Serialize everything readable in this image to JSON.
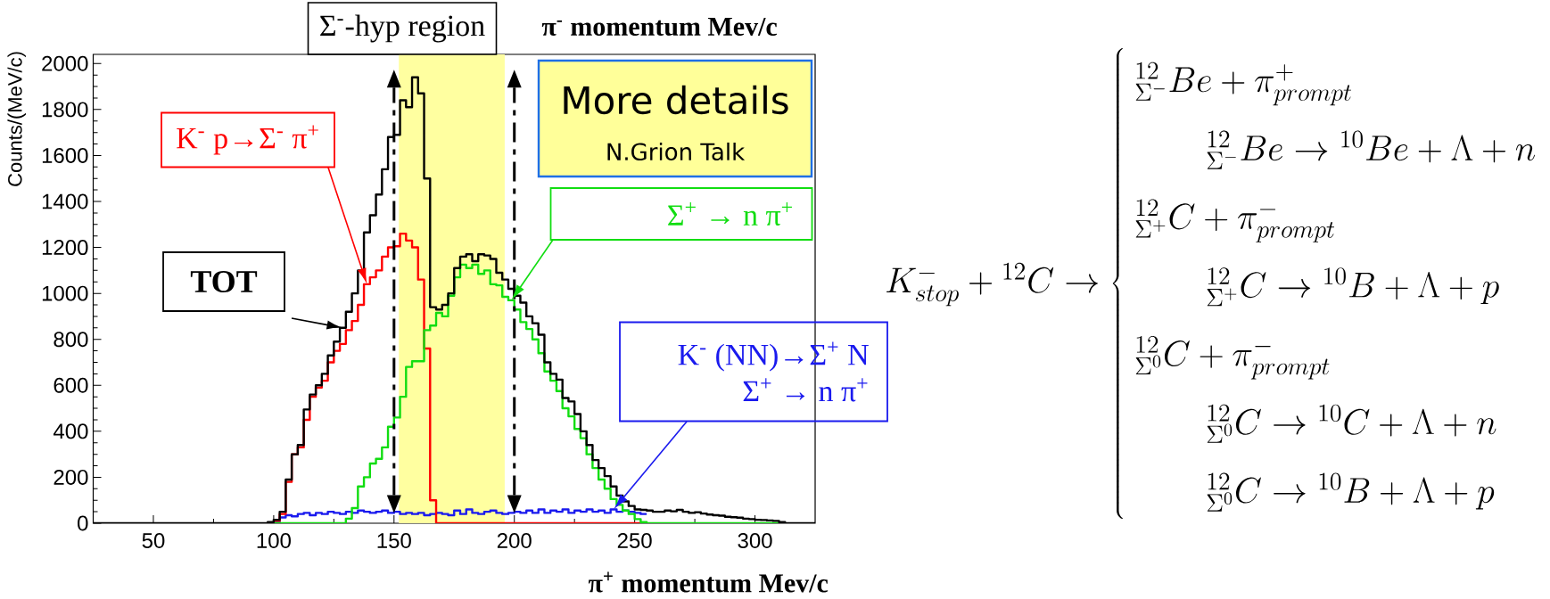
{
  "chart_data": {
    "type": "histogram",
    "xlabel": "π$^{+}$ momentum Mev/c",
    "ylabel": "Counts/(MeV/c)",
    "annotations": [
      "Σ$^{-}$-hyp region",
      "π$^{-}$ momentum Mev/c",
      "More details",
      "N.Grion Talk",
      "K^{-}_{stop}+{}^{12}C\\rightarrow\\left\\{\\begin{array}{l}{}^{12}_{\\Sigma^{-}}Be+\\pi^{+}_{prompt}\\\\\\qquad{}^{12}_{\\Sigma^{-}}Be\\rightarrow{}^{10}Be+\\Lambda+n\\\\{}^{12}_{\\Sigma^{+}}C+\\pi^{-}_{prompt}\\\\\\qquad{}^{12}_{\\Sigma^{+}}C\\rightarrow{}^{10}B+\\Lambda+p\\\\{}^{12}_{\\Sigma^{0}}C+\\pi^{-}_{prompt}\\\\\\qquad{}^{12}_{\\Sigma^{0}}C\\rightarrow{}^{10}C+\\Lambda+n\\\\\\qquad{}^{12}_{\\Sigma^{0}}C\\rightarrow{}^{10}B+\\Lambda+p\\end{array}\\right."
    ],
    "bins": [
      25,
      27.5,
      30,
      32.5,
      35,
      37.5,
      40,
      42.5,
      45,
      47.5,
      50,
      52.5,
      55,
      57.5,
      60,
      62.5,
      65,
      67.5,
      70,
      72.5,
      75,
      77.5,
      80,
      82.5,
      85,
      87.5,
      90,
      92.5,
      95,
      97.5,
      100,
      102.5,
      105,
      107.5,
      110,
      112.5,
      115,
      117.5,
      120,
      122.5,
      125,
      127.5,
      130,
      132.5,
      135,
      137.5,
      140,
      142.5,
      145,
      147.5,
      150,
      152.5,
      155,
      157.5,
      160,
      162.5,
      165,
      167.5,
      170,
      172.5,
      175,
      177.5,
      180,
      182.5,
      185,
      187.5,
      190,
      192.5,
      195,
      197.5,
      200,
      202.5,
      205,
      207.5,
      210,
      212.5,
      215,
      217.5,
      220,
      222.5,
      225,
      227.5,
      230,
      232.5,
      235,
      237.5,
      240,
      242.5,
      245,
      247.5,
      250,
      252.5,
      255,
      257.5,
      260,
      262.5,
      265,
      267.5,
      270,
      272.5,
      275,
      277.5,
      280,
      282.5,
      285,
      287.5,
      290,
      292.5,
      295,
      297.5,
      300,
      302.5,
      305,
      307.5,
      310,
      312.5,
      315,
      317.5,
      320,
      322.5,
      325
    ],
    "series": [
      {
        "name": "K$^{-}$ (NN)→Σ$^{+}$ N Σ$^{+}$ → n π$^{+}$",
        "color": "#1a1aee",
        "bins": [
          100,
          102.5,
          105,
          107.5,
          110,
          112.5,
          115,
          117.5,
          120,
          122.5,
          125,
          127.5,
          130,
          132.5,
          135,
          137.5,
          140,
          142.5,
          145,
          147.5,
          150,
          152.5,
          155,
          157.5,
          160,
          162.5,
          165,
          167.5,
          170,
          172.5,
          175,
          177.5,
          180,
          182.5,
          185,
          187.5,
          190,
          192.5,
          195,
          197.5,
          200,
          202.5,
          205,
          207.5,
          210,
          212.5,
          215,
          217.5,
          220,
          222.5,
          225,
          227.5,
          230,
          232.5,
          235,
          237.5,
          240,
          242.5,
          245,
          247.5,
          250,
          252.5,
          255
        ],
        "values": [
          5,
          25,
          35,
          30,
          40,
          45,
          35,
          45,
          40,
          50,
          45,
          40,
          50,
          45,
          55,
          50,
          45,
          50,
          55,
          45,
          50,
          40,
          45,
          40,
          45,
          35,
          40,
          45,
          40,
          35,
          55,
          40,
          60,
          45,
          40,
          50,
          55,
          45,
          40,
          45,
          50,
          45,
          55,
          45,
          60,
          45,
          55,
          50,
          60,
          45,
          55,
          50,
          60,
          50,
          55,
          45,
          60,
          50,
          55,
          50,
          45,
          40
        ]
      },
      {
        "name": "K$^{-}$ p→Σ$^{-}$ π$^{+}$",
        "color": "#ff0000",
        "bins": [
          100,
          102.5,
          105,
          107.5,
          110,
          112.5,
          115,
          117.5,
          120,
          122.5,
          125,
          127.5,
          130,
          132.5,
          135,
          137.5,
          140,
          142.5,
          145,
          147.5,
          150,
          152.5,
          155,
          157.5,
          160,
          162.5,
          165,
          167.5,
          170,
          172.5,
          175,
          177.5,
          180,
          182.5,
          185,
          187.5,
          190,
          192.5,
          195,
          197.5,
          200,
          202.5,
          205,
          207.5,
          210,
          212.5,
          215,
          217.5,
          220,
          222.5,
          225,
          227.5,
          230,
          232.5,
          235,
          237.5,
          240,
          242.5,
          245,
          247.5,
          250,
          252.5
        ],
        "values": [
          10,
          40,
          180,
          300,
          330,
          450,
          550,
          590,
          620,
          700,
          750,
          780,
          840,
          880,
          950,
          1040,
          1070,
          1100,
          1160,
          1200,
          1205,
          1260,
          1230,
          1200,
          1060,
          760,
          100,
          0,
          0,
          0,
          0,
          0,
          0,
          0,
          0,
          0,
          0,
          0,
          0,
          0,
          0,
          0,
          0,
          0,
          0,
          0,
          0,
          0,
          0,
          0,
          0,
          0,
          0,
          0,
          0,
          0,
          0,
          0,
          0,
          0,
          0
        ]
      },
      {
        "name": "Σ$^{+}$ → n π$^{+}$",
        "color": "#11dd11",
        "bins": [
          100,
          102.5,
          105,
          107.5,
          110,
          112.5,
          115,
          117.5,
          120,
          122.5,
          125,
          127.5,
          130,
          132.5,
          135,
          137.5,
          140,
          142.5,
          145,
          147.5,
          150,
          152.5,
          155,
          157.5,
          160,
          162.5,
          165,
          167.5,
          170,
          172.5,
          175,
          177.5,
          180,
          182.5,
          185,
          187.5,
          190,
          192.5,
          195,
          197.5,
          200,
          202.5,
          205,
          207.5,
          210,
          212.5,
          215,
          217.5,
          220,
          222.5,
          225,
          227.5,
          230,
          232.5,
          235,
          237.5,
          240,
          242.5,
          245,
          247.5,
          250,
          252.5,
          255,
          257.5,
          260,
          262.5,
          265,
          267.5,
          270,
          272.5,
          275,
          277.5,
          280,
          282.5,
          285,
          287.5,
          290,
          292.5,
          295,
          297.5,
          300,
          302.5,
          305,
          307.5,
          310
        ],
        "values": [
          0,
          0,
          0,
          0,
          0,
          0,
          0,
          0,
          0,
          0,
          0,
          0,
          20,
          66,
          160,
          200,
          260,
          280,
          330,
          420,
          460,
          550,
          680,
          705,
          705,
          840,
          860,
          915,
          900,
          990,
          1070,
          1125,
          1110,
          1125,
          1085,
          1100,
          1040,
          1035,
          985,
          970,
          930,
          875,
          845,
          800,
          740,
          660,
          620,
          575,
          500,
          465,
          410,
          370,
          300,
          240,
          190,
          150,
          105,
          80,
          55,
          40,
          18,
          5,
          0,
          0,
          0,
          0,
          0,
          0,
          0,
          0,
          0,
          0,
          0,
          0,
          0,
          0,
          0,
          0,
          0,
          0,
          0,
          0,
          0,
          0
        ]
      },
      {
        "name": "TOT",
        "color": "#000000",
        "values": [
          0,
          0,
          0,
          0,
          0,
          0,
          0,
          0,
          0,
          0,
          0,
          0,
          0,
          0,
          0,
          0,
          0,
          0,
          0,
          0,
          0,
          0,
          0,
          0,
          0,
          0,
          0,
          0,
          0,
          5,
          15,
          50,
          190,
          300,
          340,
          495,
          560,
          600,
          650,
          730,
          790,
          850,
          920,
          1000,
          1100,
          1265,
          1340,
          1430,
          1540,
          1680,
          1690,
          1840,
          1810,
          1940,
          1870,
          1500,
          940,
          930,
          950,
          1000,
          1110,
          1160,
          1170,
          1140,
          1170,
          1165,
          1150,
          1090,
          1060,
          1020,
          990,
          960,
          900,
          870,
          820,
          700,
          650,
          625,
          545,
          530,
          475,
          400,
          340,
          275,
          240,
          205,
          160,
          120,
          95,
          75,
          60,
          58,
          55,
          50,
          50,
          55,
          52,
          58,
          50,
          45,
          48,
          42,
          38,
          35,
          33,
          28,
          26,
          24,
          20,
          18,
          15,
          14,
          12,
          10,
          5,
          0,
          0,
          0,
          0,
          0
        ]
      }
    ],
    "xlim": [
      25,
      325
    ],
    "ylim": [
      0,
      2040
    ],
    "xticks": [
      50,
      {
        "value": 75,
        "label": null
      },
      100,
      {
        "value": 125,
        "label": null
      },
      150,
      {
        "value": 175,
        "label": null
      },
      200,
      {
        "value": 225,
        "label": null
      },
      250,
      {
        "value": 275,
        "label": null
      },
      300
    ],
    "yticks": [
      0,
      {
        "value": 50,
        "label": null
      },
      {
        "value": 100,
        "label": null
      },
      {
        "value": 150,
        "label": null
      },
      200,
      {
        "value": 250,
        "label": null
      },
      {
        "value": 300,
        "label": null
      },
      {
        "value": 350,
        "label": null
      },
      400,
      {
        "value": 450,
        "label": null
      },
      {
        "value": 500,
        "label": null
      },
      {
        "value": 550,
        "label": null
      },
      600,
      {
        "value": 650,
        "label": null
      },
      {
        "value": 700,
        "label": null
      },
      {
        "value": 750,
        "label": null
      },
      800,
      {
        "value": 850,
        "label": null
      },
      {
        "value": 900,
        "label": null
      },
      {
        "value": 950,
        "label": null
      },
      1000,
      {
        "value": 1050,
        "label": null
      },
      {
        "value": 1100,
        "label": null
      },
      {
        "value": 1150,
        "label": null
      },
      1200,
      {
        "value": 1250,
        "label": null
      },
      {
        "value": 1300,
        "label": null
      },
      {
        "value": 1350,
        "label": null
      },
      1400,
      {
        "value": 1450,
        "label": null
      },
      {
        "value": 1500,
        "label": null
      },
      {
        "value": 1550,
        "label": null
      },
      1600,
      {
        "value": 1650,
        "label": null
      },
      {
        "value": 1700,
        "label": null
      },
      {
        "value": 1750,
        "label": null
      },
      1800,
      {
        "value": 1850,
        "label": null
      },
      {
        "value": 1900,
        "label": null
      },
      {
        "value": 1950,
        "label": null
      },
      2000
    ],
    "ref_lines": [
      {
        "axis": "x",
        "value": 150,
        "color": "#000000",
        "line_style": "dashdot"
      },
      {
        "axis": "x",
        "value": 200,
        "color": "#000000",
        "line_style": "dashdot"
      }
    ],
    "bands": [
      {
        "axis": "x",
        "from": 152,
        "to": 196,
        "color": "#ffffa0"
      }
    ]
  }
}
